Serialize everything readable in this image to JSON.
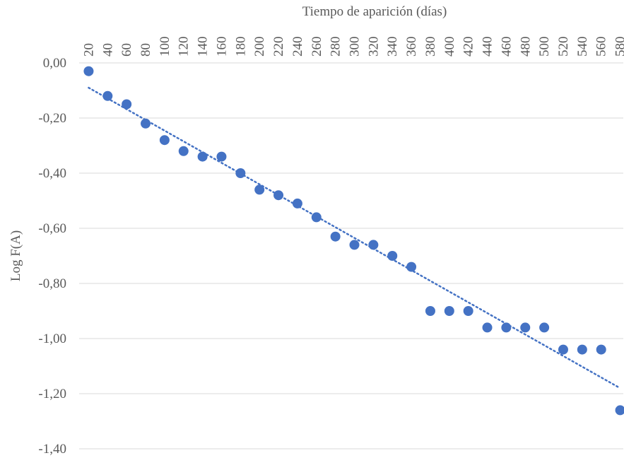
{
  "chart_data": {
    "type": "scatter",
    "x_label": "Tiempo de aparición (días)",
    "y_label": "Log F(A)",
    "x": [
      20,
      40,
      60,
      80,
      100,
      120,
      140,
      160,
      180,
      200,
      220,
      240,
      260,
      280,
      300,
      320,
      340,
      360,
      380,
      400,
      420,
      440,
      460,
      480,
      500,
      520,
      540,
      560,
      580
    ],
    "series": [
      {
        "color": "#4472c4",
        "values": [
          -0.03,
          -0.12,
          -0.15,
          -0.22,
          -0.28,
          -0.32,
          -0.34,
          -0.34,
          -0.4,
          -0.46,
          -0.48,
          -0.51,
          -0.56,
          -0.63,
          -0.66,
          -0.66,
          -0.7,
          -0.74,
          -0.9,
          -0.9,
          -0.9,
          -0.96,
          -0.96,
          -0.96,
          -0.96,
          -1.04,
          -1.04,
          -1.04,
          -1.26
        ]
      }
    ],
    "trendline": {
      "color": "#4472c4",
      "x": [
        20,
        580
      ],
      "values": [
        -0.09,
        -1.18
      ]
    },
    "xlim": [
      10,
      590
    ],
    "xticks": [
      20,
      40,
      60,
      80,
      100,
      120,
      140,
      160,
      180,
      200,
      220,
      240,
      260,
      280,
      300,
      320,
      340,
      360,
      380,
      400,
      420,
      440,
      460,
      480,
      500,
      520,
      540,
      560,
      580
    ],
    "ylim": [
      -1.4,
      0
    ],
    "yticks": [
      {
        "value": 0,
        "label": "0,00"
      },
      {
        "value": -0.2,
        "label": "-0,20"
      },
      {
        "value": -0.4,
        "label": "-0,40"
      },
      {
        "value": -0.6,
        "label": "-0,60"
      },
      {
        "value": -0.8,
        "label": "-0,80"
      },
      {
        "value": -1.0,
        "label": "-1,00"
      },
      {
        "value": -1.2,
        "label": "-1,20"
      },
      {
        "value": -1.4,
        "label": "-1,40"
      }
    ],
    "grid": true
  }
}
